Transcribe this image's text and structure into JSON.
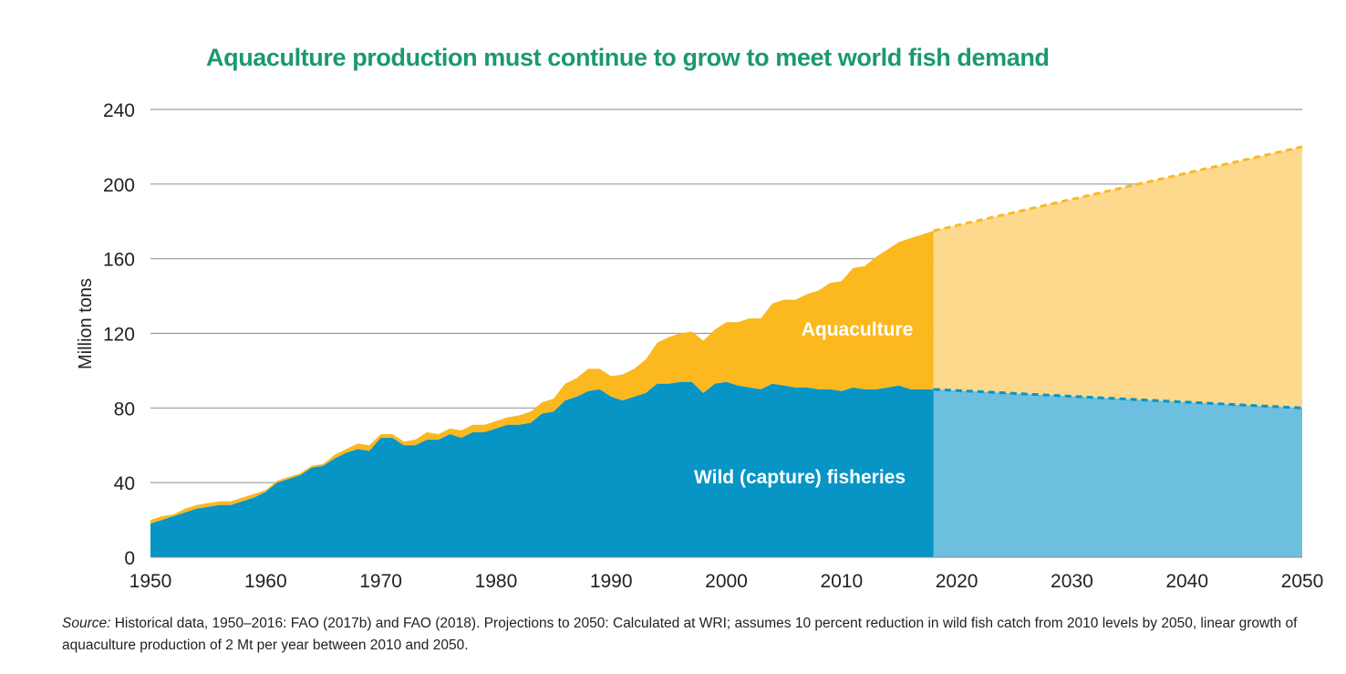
{
  "chart_data": {
    "type": "area",
    "title": "Aquaculture production must continue to grow to meet world fish demand",
    "xlabel": "",
    "ylabel": "Million tons",
    "xlim": [
      1950,
      2050
    ],
    "ylim": [
      0,
      240
    ],
    "x_ticks": [
      "1950",
      "1960",
      "1970",
      "1980",
      "1990",
      "2000",
      "2010",
      "2020",
      "2030",
      "2040",
      "2050"
    ],
    "y_ticks": [
      "0",
      "40",
      "80",
      "120",
      "160",
      "200",
      "240"
    ],
    "grid": true,
    "stacked": true,
    "series": [
      {
        "name": "Wild (capture) fisheries",
        "color": "#0795c5",
        "historical": {
          "x": [
            1950,
            1951,
            1952,
            1953,
            1954,
            1955,
            1956,
            1957,
            1958,
            1959,
            1960,
            1961,
            1962,
            1963,
            1964,
            1965,
            1966,
            1967,
            1968,
            1969,
            1970,
            1971,
            1972,
            1973,
            1974,
            1975,
            1976,
            1977,
            1978,
            1979,
            1980,
            1981,
            1982,
            1983,
            1984,
            1985,
            1986,
            1987,
            1988,
            1989,
            1990,
            1991,
            1992,
            1993,
            1994,
            1995,
            1996,
            1997,
            1998,
            1999,
            2000,
            2001,
            2002,
            2003,
            2004,
            2005,
            2006,
            2007,
            2008,
            2009,
            2010,
            2011,
            2012,
            2013,
            2014,
            2015,
            2016,
            2017,
            2018
          ],
          "y": [
            18,
            20,
            22,
            24,
            26,
            27,
            28,
            28,
            30,
            32,
            35,
            40,
            42,
            44,
            48,
            49,
            53,
            56,
            58,
            57,
            64,
            64,
            60,
            60,
            63,
            63,
            66,
            64,
            67,
            67,
            69,
            71,
            71,
            72,
            77,
            78,
            84,
            86,
            89,
            90,
            86,
            84,
            86,
            88,
            93,
            93,
            94,
            94,
            88,
            93,
            94,
            92,
            91,
            90,
            93,
            92,
            91,
            91,
            90,
            90,
            89,
            91,
            90,
            90,
            91,
            92,
            90,
            90,
            90
          ]
        },
        "projection": {
          "x": [
            2018,
            2050
          ],
          "y": [
            90,
            80
          ]
        }
      },
      {
        "name": "Aquaculture",
        "color": "#fbb81f",
        "total_historical": {
          "x": [
            1950,
            1951,
            1952,
            1953,
            1954,
            1955,
            1956,
            1957,
            1958,
            1959,
            1960,
            1961,
            1962,
            1963,
            1964,
            1965,
            1966,
            1967,
            1968,
            1969,
            1970,
            1971,
            1972,
            1973,
            1974,
            1975,
            1976,
            1977,
            1978,
            1979,
            1980,
            1981,
            1982,
            1983,
            1984,
            1985,
            1986,
            1987,
            1988,
            1989,
            1990,
            1991,
            1992,
            1993,
            1994,
            1995,
            1996,
            1997,
            1998,
            1999,
            2000,
            2001,
            2002,
            2003,
            2004,
            2005,
            2006,
            2007,
            2008,
            2009,
            2010,
            2011,
            2012,
            2013,
            2014,
            2015,
            2016,
            2017,
            2018
          ],
          "y": [
            20,
            22,
            23,
            26,
            28,
            29,
            30,
            30,
            32,
            34,
            36,
            41,
            43,
            45,
            49,
            50,
            55,
            58,
            61,
            60,
            66,
            66,
            62,
            63,
            67,
            66,
            69,
            68,
            71,
            71,
            73,
            75,
            76,
            78,
            83,
            85,
            93,
            96,
            101,
            101,
            97,
            98,
            101,
            106,
            115,
            118,
            120,
            121,
            116,
            122,
            126,
            126,
            128,
            128,
            136,
            138,
            138,
            141,
            143,
            147,
            148,
            155,
            156,
            161,
            165,
            169,
            171,
            173,
            175
          ]
        },
        "total_projection": {
          "x": [
            2018,
            2050
          ],
          "y": [
            175,
            220
          ]
        }
      }
    ],
    "annotations": [
      "Aquaculture",
      "Wild (capture) fisheries"
    ],
    "projection_start": 2018
  },
  "source": {
    "label": "Source:",
    "text": " Historical data, 1950–2016: FAO (2017b) and FAO (2018). Projections to 2050: Calculated at WRI; assumes 10 percent reduction in wild fish catch from 2010 levels by 2050, linear growth of aquaculture production of 2 Mt per year between 2010 and 2050."
  },
  "colors": {
    "title": "#1a9a6c",
    "wild": "#0795c5",
    "wild_projection": "#6dbfdf",
    "aqua": "#fbb81f",
    "aqua_projection": "#fcd98c",
    "grid": "#9a9a9a"
  }
}
